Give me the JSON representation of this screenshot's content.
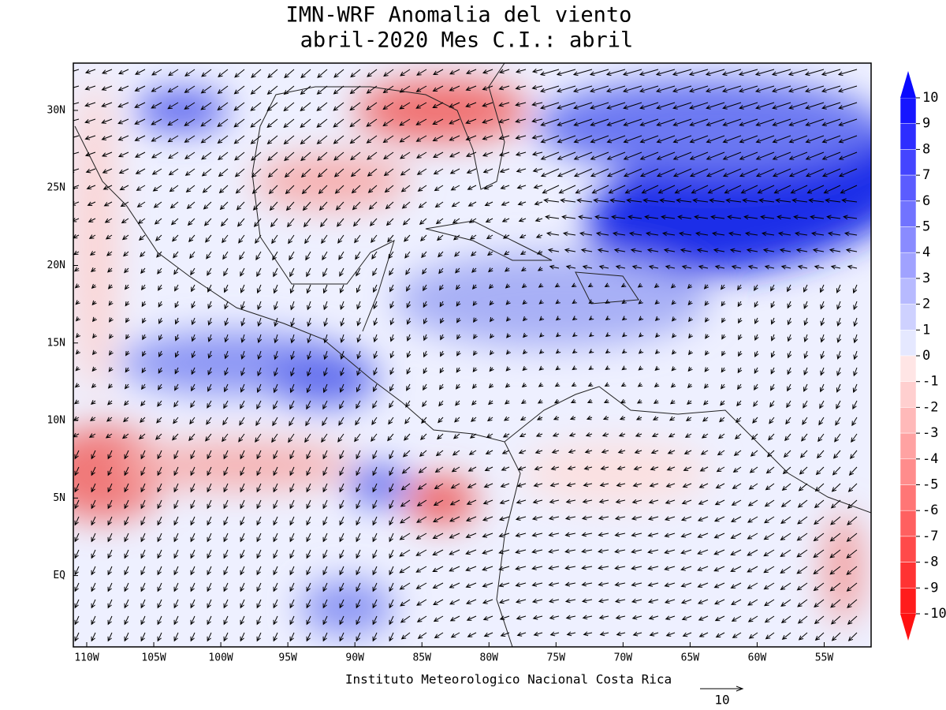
{
  "title": "IMN-WRF Anomalia del viento",
  "subtitle": "abril-2020 Mes C.I.: abril",
  "footer": "Instituto Meteorologico Nacional Costa Rica",
  "reference_vector": {
    "value": 10
  },
  "map": {
    "xlim": [
      -111,
      -51.5
    ],
    "ylim": [
      -4.6,
      33.05
    ],
    "xticks": [
      {
        "value": -110,
        "label": "110W"
      },
      {
        "value": -105,
        "label": "105W"
      },
      {
        "value": -100,
        "label": "100W"
      },
      {
        "value": -95,
        "label": "95W"
      },
      {
        "value": -90,
        "label": "90W"
      },
      {
        "value": -85,
        "label": "85W"
      },
      {
        "value": -80,
        "label": "80W"
      },
      {
        "value": -75,
        "label": "75W"
      },
      {
        "value": -70,
        "label": "70W"
      },
      {
        "value": -65,
        "label": "65W"
      },
      {
        "value": -60,
        "label": "60W"
      },
      {
        "value": -55,
        "label": "55W"
      }
    ],
    "yticks": [
      {
        "value": 30,
        "label": "30N"
      },
      {
        "value": 25,
        "label": "25N"
      },
      {
        "value": 20,
        "label": "20N"
      },
      {
        "value": 15,
        "label": "15N"
      },
      {
        "value": 10,
        "label": "10N"
      },
      {
        "value": 5,
        "label": "5N"
      },
      {
        "value": 0,
        "label": "EQ"
      }
    ]
  },
  "colorbar": {
    "ticks": [
      10,
      9,
      8,
      7,
      6,
      5,
      4,
      3,
      2,
      1,
      0,
      -1,
      -2,
      -3,
      -4,
      -5,
      -6,
      -7,
      -8,
      -9,
      -10
    ]
  }
}
